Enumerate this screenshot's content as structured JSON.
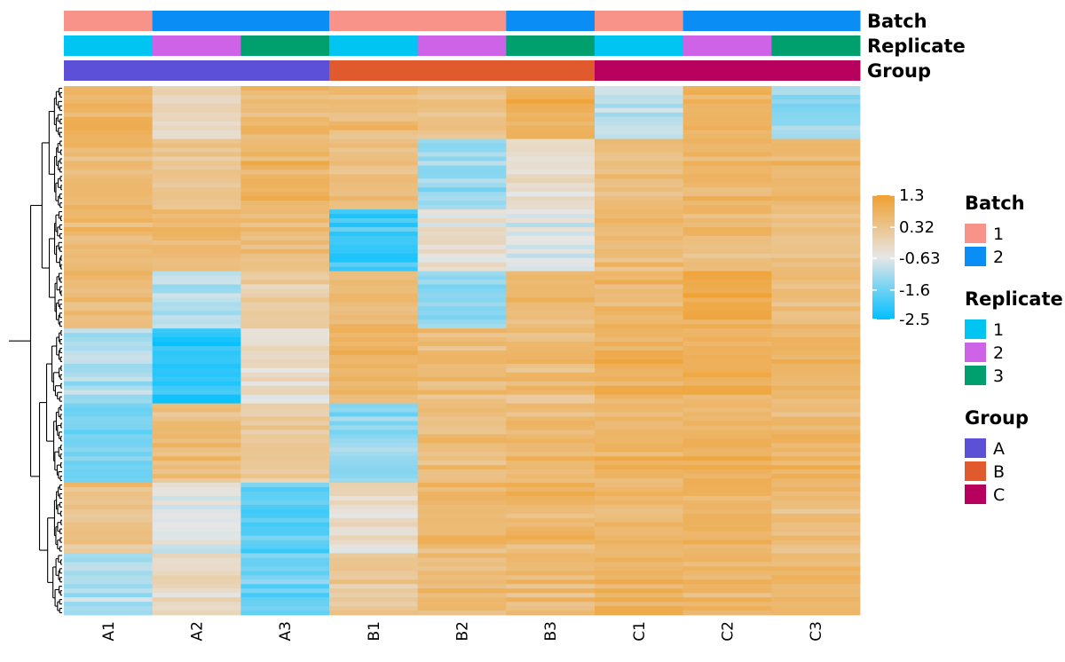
{
  "chart_data": {
    "type": "heatmap",
    "title": "",
    "columns": [
      "A1",
      "A2",
      "A3",
      "B1",
      "B2",
      "B3",
      "C1",
      "C2",
      "C3"
    ],
    "row_count": 120,
    "row_cluster_labels": [
      "r1",
      "r2",
      "r3",
      "r4",
      "r5",
      "r6",
      "r7",
      "r8",
      "r9"
    ],
    "annotation_tracks": [
      {
        "name": "Batch",
        "values": [
          "1",
          "2",
          "2",
          "1",
          "1",
          "2",
          "1",
          "2",
          "2"
        ]
      },
      {
        "name": "Replicate",
        "values": [
          "1",
          "2",
          "3",
          "1",
          "2",
          "3",
          "1",
          "2",
          "3"
        ]
      },
      {
        "name": "Group",
        "values": [
          "A",
          "A",
          "A",
          "B",
          "B",
          "B",
          "C",
          "C",
          "C"
        ]
      }
    ],
    "legends": [
      {
        "title": "Batch",
        "items": [
          {
            "label": "1",
            "color": "#F8938A"
          },
          {
            "label": "2",
            "color": "#0A8DF5"
          }
        ]
      },
      {
        "title": "Replicate",
        "items": [
          {
            "label": "1",
            "color": "#00C4F2"
          },
          {
            "label": "2",
            "color": "#CE63E8"
          },
          {
            "label": "3",
            "color": "#00A06E"
          }
        ]
      },
      {
        "title": "Group",
        "items": [
          {
            "label": "A",
            "color": "#5C51D6"
          },
          {
            "label": "B",
            "color": "#E05A2E"
          },
          {
            "label": "C",
            "color": "#B7005E"
          }
        ]
      }
    ],
    "color_scale": {
      "min": -2.5,
      "max": 1.3,
      "ticks": [
        1.3,
        0.32,
        -0.63,
        -1.6,
        -2.5
      ],
      "tick_labels": [
        "1.3",
        "0.32",
        "-0.63",
        "-1.6",
        "-2.5"
      ],
      "low_color": "#00BFFF",
      "mid_color": "#E6E6E6",
      "high_color": "#F0A030"
    },
    "blocks": [
      {
        "rows": [
          0,
          12
        ],
        "values": [
          0.75,
          -0.2,
          0.6,
          0.55,
          0.4,
          0.85,
          -1.0,
          0.7,
          -1.3
        ]
      },
      {
        "rows": [
          12,
          28
        ],
        "values": [
          0.6,
          0.35,
          0.75,
          0.5,
          -1.3,
          -0.4,
          0.5,
          0.7,
          0.6
        ]
      },
      {
        "rows": [
          28,
          42
        ],
        "values": [
          0.6,
          0.55,
          0.45,
          -2.0,
          -0.4,
          -0.7,
          0.55,
          0.55,
          0.45
        ]
      },
      {
        "rows": [
          42,
          55
        ],
        "values": [
          0.55,
          -1.0,
          0.1,
          0.55,
          -1.3,
          0.6,
          0.65,
          0.95,
          0.5
        ]
      },
      {
        "rows": [
          55,
          72
        ],
        "values": [
          -1.1,
          -2.2,
          -0.3,
          0.65,
          0.5,
          0.5,
          0.8,
          0.8,
          0.7
        ]
      },
      {
        "rows": [
          72,
          90
        ],
        "values": [
          -1.6,
          0.5,
          0.2,
          -1.3,
          0.5,
          0.65,
          0.7,
          0.8,
          0.65
        ]
      },
      {
        "rows": [
          90,
          106
        ],
        "values": [
          0.35,
          -0.6,
          -1.8,
          -0.3,
          0.6,
          0.65,
          0.6,
          0.75,
          0.55
        ]
      },
      {
        "rows": [
          106,
          120
        ],
        "values": [
          -1.0,
          -0.2,
          -1.6,
          0.2,
          0.55,
          0.55,
          0.75,
          0.7,
          0.7
        ]
      }
    ]
  }
}
